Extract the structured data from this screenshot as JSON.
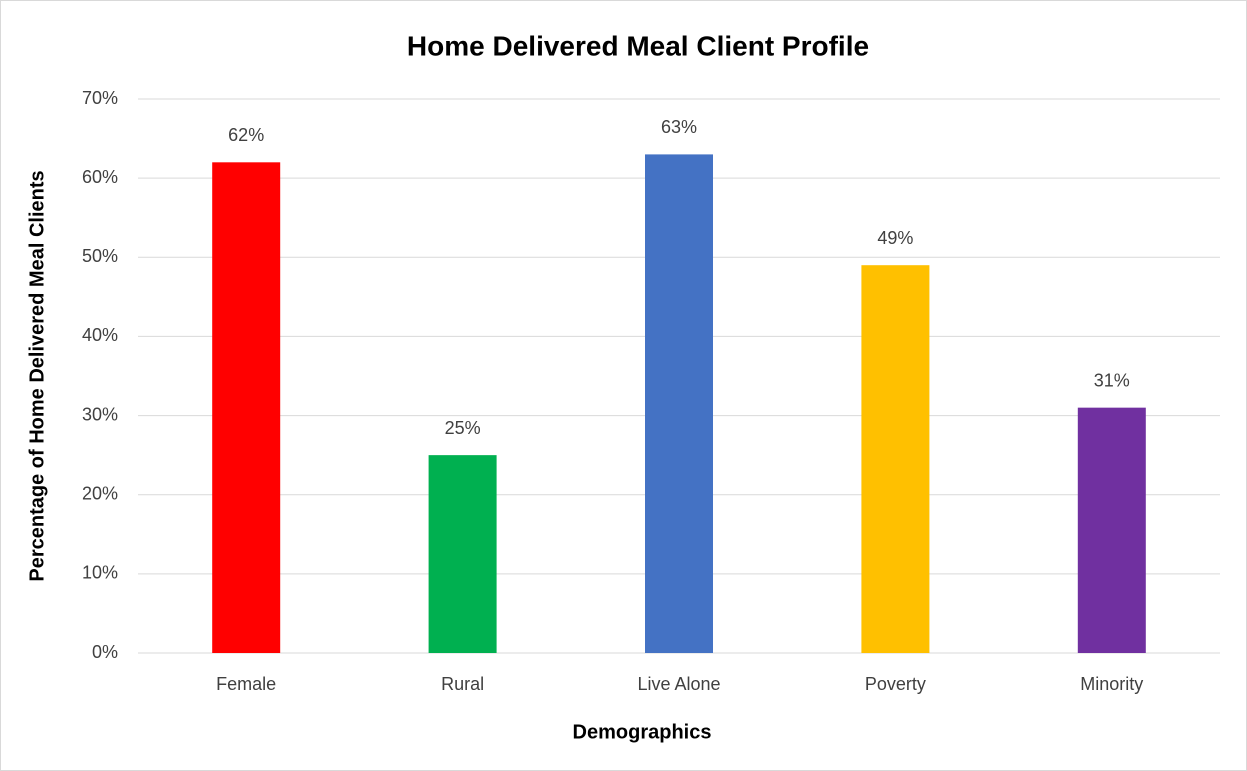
{
  "chart_data": {
    "type": "bar",
    "title": "Home Delivered Meal Client Profile",
    "x_label": "Demographics",
    "y_label": "Percentage of Home Delivered Meal Clients",
    "categories": [
      "Female",
      "Rural",
      "Live Alone",
      "Poverty",
      "Minority"
    ],
    "values": [
      62,
      25,
      63,
      49,
      31
    ],
    "value_labels": [
      "62%",
      "25%",
      "63%",
      "49%",
      "31%"
    ],
    "colors": [
      "#ff0000",
      "#00b050",
      "#4472c4",
      "#ffc000",
      "#7030a0"
    ],
    "ylim": [
      0,
      70
    ],
    "yticks": [
      {
        "value": 0,
        "label": "0%"
      },
      {
        "value": 10,
        "label": "10%"
      },
      {
        "value": 20,
        "label": "20%"
      },
      {
        "value": 30,
        "label": "30%"
      },
      {
        "value": 40,
        "label": "40%"
      },
      {
        "value": 50,
        "label": "50%"
      },
      {
        "value": 60,
        "label": "60%"
      },
      {
        "value": 70,
        "label": "70%"
      }
    ],
    "grid": true
  }
}
